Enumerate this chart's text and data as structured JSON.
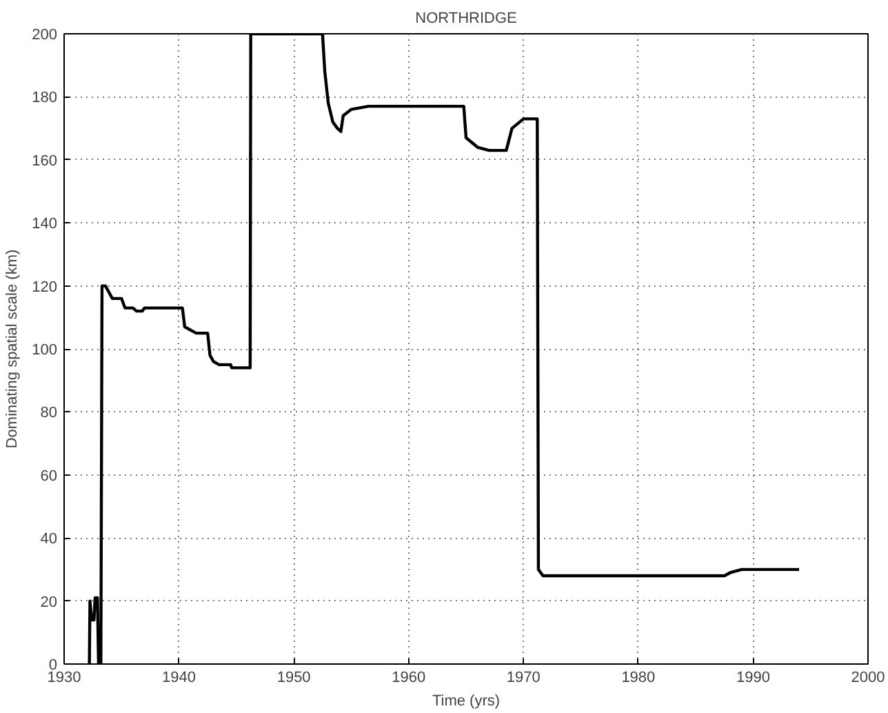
{
  "chart_data": {
    "type": "line",
    "title": "NORTHRIDGE",
    "xlabel": "Time (yrs)",
    "ylabel": "Dominating spatial scale (km)",
    "x": [
      1932.2,
      1932.25,
      1932.4,
      1932.6,
      1932.7,
      1932.9,
      1933.0,
      1933.2,
      1933.3,
      1933.6,
      1933.9,
      1934.2,
      1935.0,
      1935.3,
      1936.0,
      1936.3,
      1936.8,
      1937.0,
      1940.3,
      1940.5,
      1941.5,
      1942.5,
      1942.7,
      1943.0,
      1943.5,
      1944.5,
      1944.6,
      1946.2,
      1946.25,
      1952.5,
      1952.7,
      1953.0,
      1953.4,
      1953.8,
      1954.1,
      1954.3,
      1955.0,
      1956.5,
      1964.8,
      1965.0,
      1966.0,
      1967.0,
      1968.5,
      1969.0,
      1970.0,
      1971.2,
      1971.3,
      1971.7,
      1987.5,
      1988.0,
      1989.0,
      1994.0
    ],
    "series": [
      {
        "color": "#000000",
        "values": [
          0,
          20,
          14,
          14,
          21,
          21,
          0,
          0,
          120,
          120,
          118,
          116,
          116,
          113,
          113,
          112,
          112,
          113,
          113,
          107,
          105,
          105,
          98,
          96,
          95,
          95,
          94,
          94,
          200,
          200,
          188,
          178,
          172,
          170,
          169,
          174,
          176,
          177,
          177,
          167,
          164,
          163,
          163,
          170,
          173,
          173,
          30,
          28,
          28,
          29,
          30,
          30
        ]
      }
    ],
    "xlim": [
      1930,
      2000
    ],
    "ylim": [
      0,
      200
    ],
    "xticks": [
      1930,
      1940,
      1950,
      1960,
      1970,
      1980,
      1990,
      2000
    ],
    "yticks": [
      0,
      20,
      40,
      60,
      80,
      100,
      120,
      140,
      160,
      180,
      200
    ],
    "grid": true,
    "marker": "none",
    "line_style": "solid"
  }
}
